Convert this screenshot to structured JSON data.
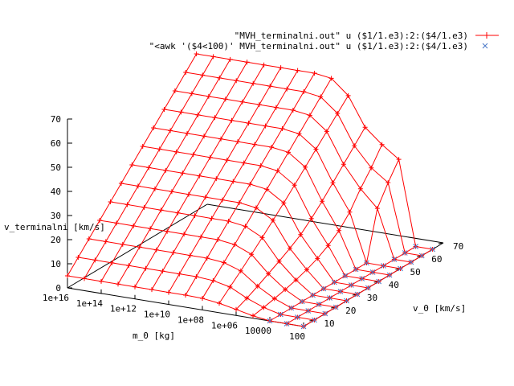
{
  "chart_data": {
    "type": "surface3d",
    "title": "",
    "xlabel": "m_0 [kg]",
    "ylabel": "v_0 [km/s]",
    "zlabel": "v_terminalni [km/s]",
    "xscale": "log",
    "x_tick_labels": [
      "1e+16",
      "1e+14",
      "1e+12",
      "1e+10",
      "1e+08",
      "1e+06",
      "10000",
      "100"
    ],
    "y_tick_labels": [
      "10",
      "20",
      "30",
      "40",
      "50",
      "60",
      "70"
    ],
    "z_tick_labels": [
      "0",
      "10",
      "20",
      "30",
      "40",
      "50",
      "60",
      "70"
    ],
    "zlim": [
      0,
      70
    ],
    "ylim": [
      5,
      70
    ],
    "legend_position": "top-right",
    "legend": [
      {
        "label": "\"MVH_terminalni.out\" u ($1/1.e3):2:($4/1.e3)",
        "color": "#ff0000",
        "marker": "plus",
        "line": true
      },
      {
        "label": "\"<awk '($4<100)' MVH_terminalni.out\" u ($1/1.e3):2:($4/1.e3)",
        "color": "#4a78c8",
        "marker": "cross",
        "line": false
      }
    ],
    "surface_note_colors": {
      "surface": "#ff0000",
      "low_series": "#4a78c8",
      "axes": "#000000"
    },
    "x_log10_mass": [
      16,
      15,
      14,
      13,
      12,
      11,
      10,
      9,
      8,
      7,
      6,
      5,
      4,
      3,
      2
    ],
    "y_velocity": [
      5,
      10,
      15,
      20,
      25,
      30,
      35,
      40,
      45,
      50,
      55,
      60,
      65
    ],
    "z_terminal_velocity": [
      [
        5,
        10,
        15,
        20,
        25,
        30,
        35,
        40,
        45,
        50,
        55,
        60,
        65
      ],
      [
        5,
        10,
        15,
        20,
        25,
        30,
        35,
        40,
        45,
        50,
        55,
        60,
        65
      ],
      [
        5,
        10,
        15,
        20,
        25,
        30,
        35,
        40,
        45,
        50,
        55,
        60,
        65
      ],
      [
        5,
        10,
        15,
        20,
        25,
        30,
        35,
        40,
        45,
        50,
        55,
        60,
        65
      ],
      [
        5,
        10,
        15,
        20,
        25,
        30,
        35,
        40,
        45,
        50,
        55,
        60,
        65
      ],
      [
        5,
        10,
        15,
        20,
        25,
        30,
        35,
        40,
        45,
        50,
        55,
        60,
        65
      ],
      [
        5,
        10,
        15,
        20,
        25,
        30,
        35,
        40,
        45,
        50,
        55,
        60,
        65
      ],
      [
        5,
        10,
        15,
        20,
        25,
        30,
        35,
        40,
        45,
        50,
        55,
        60,
        65
      ],
      [
        4.8,
        9.5,
        14.3,
        19.1,
        24,
        29,
        34,
        39,
        44,
        49,
        54,
        59,
        64
      ],
      [
        3.9,
        8,
        12,
        16.2,
        20.5,
        25,
        29.5,
        34.2,
        39,
        43.8,
        48.5,
        53.3,
        58
      ],
      [
        2.5,
        4.5,
        6.8,
        9.3,
        11.8,
        14.5,
        17.5,
        21.5,
        26,
        31,
        36,
        41,
        46
      ],
      [
        1,
        1.8,
        2.8,
        3.9,
        5.2,
        6.8,
        8.8,
        11.5,
        15,
        20,
        27,
        33,
        40
      ],
      [
        0.05,
        0.05,
        0.05,
        0.06,
        0.06,
        0.06,
        0.06,
        0.06,
        0.07,
        0.07,
        20,
        28,
        35
      ],
      [
        0.02,
        0.02,
        0.02,
        0.02,
        0.02,
        0.02,
        0.02,
        0.02,
        0.02,
        0.02,
        0.02,
        0.02,
        0.02
      ],
      [
        0.01,
        0.01,
        0.01,
        0.01,
        0.01,
        0.01,
        0.01,
        0.01,
        0.01,
        0.01,
        0.01,
        0.01,
        0.01
      ]
    ]
  }
}
